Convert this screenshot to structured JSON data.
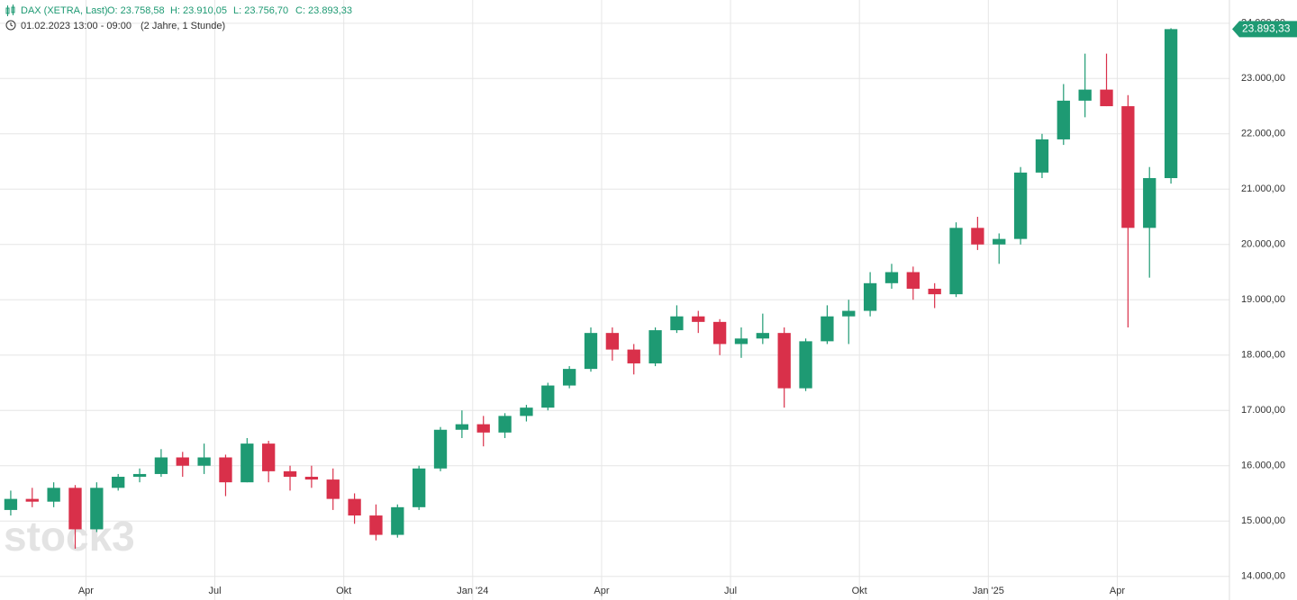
{
  "header": {
    "symbol": "DAX (XETRA, Last)",
    "open": "O: 23.758,58",
    "high": "H: 23.910,05",
    "low": "L: 23.756,70",
    "close": "C: 23.893,33",
    "range": "01.02.2023 13:00 - 09:00",
    "period": "(2 Jahre, 1 Stunde)"
  },
  "chart_data": {
    "type": "candlestick",
    "watermark": "stock3",
    "up_color": "#1e9a73",
    "down_color": "#d9304a",
    "grid": true,
    "categories": [
      null,
      null,
      null,
      null,
      "Apr",
      null,
      null,
      null,
      null,
      null,
      "Jul",
      null,
      null,
      null,
      null,
      null,
      "Okt",
      null,
      null,
      null,
      null,
      null,
      "Jan '24",
      null,
      null,
      null,
      null,
      null,
      "Apr",
      null,
      null,
      null,
      null,
      null,
      "Jul",
      null,
      null,
      null,
      null,
      null,
      "Okt",
      null,
      null,
      null,
      null,
      null,
      "Jan '25",
      null,
      null,
      null,
      null,
      null,
      "Apr",
      null,
      null
    ],
    "open": [
      15200,
      15400,
      15350,
      15600,
      14850,
      15600,
      15800,
      15850,
      16150,
      16000,
      16150,
      15700,
      16400,
      15900,
      15800,
      15750,
      15400,
      15100,
      14750,
      15250,
      15950,
      16650,
      16750,
      16600,
      16900,
      17050,
      17450,
      17750,
      18400,
      18100,
      17850,
      18450,
      18700,
      18600,
      18200,
      18300,
      18400,
      17400,
      18250,
      18700,
      18800,
      19300,
      19500,
      19200,
      19100,
      20300,
      20000,
      20100,
      21300,
      21900,
      22600,
      22800,
      22500,
      20300,
      21200
    ],
    "high": [
      15550,
      15600,
      15700,
      15650,
      15700,
      15850,
      15950,
      16300,
      16250,
      16400,
      16200,
      16500,
      16450,
      16000,
      16000,
      15950,
      15500,
      15300,
      15300,
      16000,
      16700,
      17000,
      16900,
      16950,
      17100,
      17500,
      17800,
      18500,
      18500,
      18200,
      18500,
      18900,
      18800,
      18650,
      18500,
      18750,
      18500,
      18300,
      18900,
      19000,
      19500,
      19650,
      19600,
      19300,
      20400,
      20500,
      20200,
      21400,
      22000,
      22900,
      23450,
      23450,
      22700,
      21400,
      23910
    ],
    "low": [
      15100,
      15250,
      15250,
      14500,
      14800,
      15550,
      15700,
      15800,
      15800,
      15850,
      15450,
      15700,
      15700,
      15550,
      15600,
      15200,
      14950,
      14650,
      14700,
      15200,
      15900,
      16500,
      16350,
      16500,
      16800,
      17000,
      17400,
      17700,
      17900,
      17650,
      17800,
      18400,
      18400,
      18000,
      17950,
      18200,
      17050,
      17350,
      18200,
      18200,
      18700,
      19200,
      19000,
      18850,
      19050,
      19900,
      19650,
      20000,
      21200,
      21800,
      22300,
      22500,
      18500,
      19400,
      21100
    ],
    "close": [
      15400,
      15350,
      15600,
      14850,
      15600,
      15800,
      15850,
      16150,
      16000,
      16150,
      15700,
      16400,
      15900,
      15800,
      15750,
      15400,
      15100,
      14750,
      15250,
      15950,
      16650,
      16750,
      16600,
      16900,
      17050,
      17450,
      17750,
      18400,
      18100,
      17850,
      18450,
      18700,
      18600,
      18200,
      18300,
      18400,
      17400,
      18250,
      18700,
      18800,
      19300,
      19500,
      19200,
      19100,
      20300,
      20000,
      20100,
      21300,
      21900,
      22600,
      22800,
      22500,
      20300,
      21200,
      23893.33
    ],
    "last_price": {
      "value": 23893.33,
      "label": "23.893,33"
    },
    "ylim": [
      13930,
      24420
    ],
    "yticks": [
      {
        "value": 14000,
        "label": "14.000,00"
      },
      {
        "value": 15000,
        "label": "15.000,00"
      },
      {
        "value": 16000,
        "label": "16.000,00"
      },
      {
        "value": 17000,
        "label": "17.000,00"
      },
      {
        "value": 18000,
        "label": "18.000,00"
      },
      {
        "value": 19000,
        "label": "19.000,00"
      },
      {
        "value": 20000,
        "label": "20.000,00"
      },
      {
        "value": 21000,
        "label": "21.000,00"
      },
      {
        "value": 22000,
        "label": "22.000,00"
      },
      {
        "value": 23000,
        "label": "23.000,00"
      },
      {
        "value": 24000,
        "label": "24.000,00"
      }
    ]
  }
}
